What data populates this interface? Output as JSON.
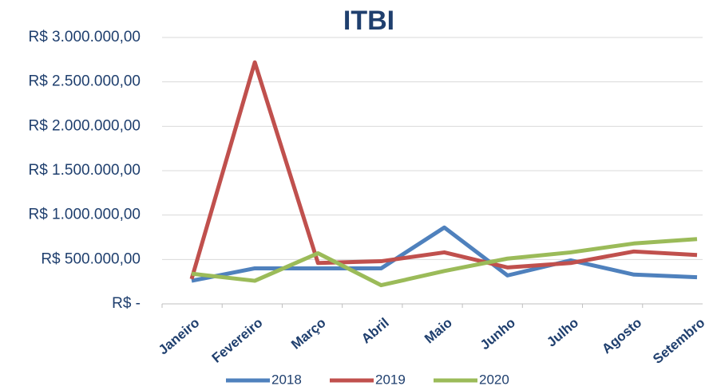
{
  "chart_data": {
    "type": "line",
    "title": "ITBI",
    "categories": [
      "Janeiro",
      "Fevereiro",
      "Março",
      "Abril",
      "Maio",
      "Junho",
      "Julho",
      "Agosto",
      "Setembro"
    ],
    "series": [
      {
        "name": "2018",
        "color": "#4f81bd",
        "values": [
          260000,
          400000,
          400000,
          400000,
          860000,
          320000,
          490000,
          330000,
          300000
        ]
      },
      {
        "name": "2019",
        "color": "#c0504d",
        "values": [
          280000,
          2720000,
          460000,
          480000,
          580000,
          410000,
          460000,
          590000,
          550000
        ]
      },
      {
        "name": "2020",
        "color": "#9bbb59",
        "values": [
          340000,
          260000,
          570000,
          210000,
          370000,
          510000,
          580000,
          680000,
          730000
        ]
      }
    ],
    "ylim": [
      0,
      3000000
    ],
    "yticks": [
      {
        "value": 0,
        "label": "R$ -"
      },
      {
        "value": 500000,
        "label": "R$ 500.000,00"
      },
      {
        "value": 1000000,
        "label": "R$ 1.000.000,00"
      },
      {
        "value": 1500000,
        "label": "R$ 1.500.000,00"
      },
      {
        "value": 2000000,
        "label": "R$ 2.000.000,00"
      },
      {
        "value": 2500000,
        "label": "R$ 2.500.000,00"
      },
      {
        "value": 3000000,
        "label": "R$ 3.000.000,00"
      }
    ],
    "grid": true
  }
}
